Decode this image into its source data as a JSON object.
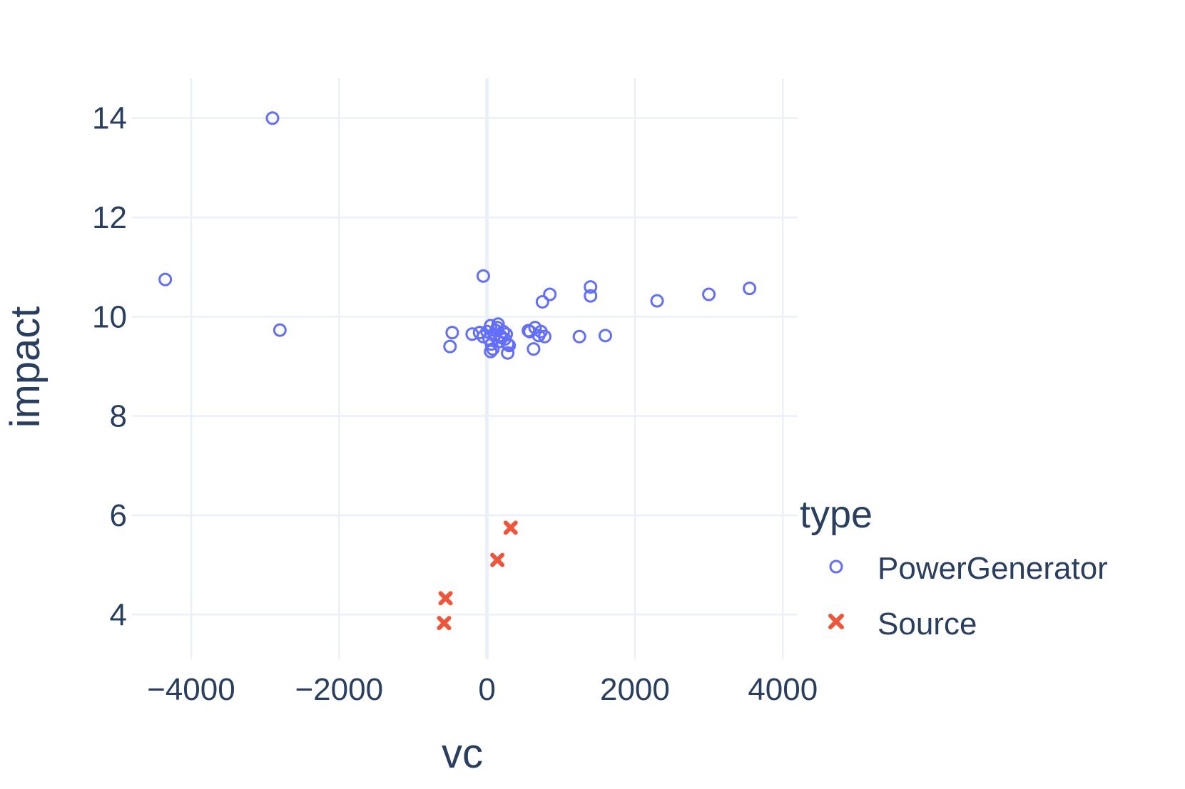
{
  "chart_data": {
    "type": "scatter",
    "xlabel": "vc",
    "ylabel": "impact",
    "xlim": [
      -4800,
      4200
    ],
    "ylim": [
      3.1,
      14.8
    ],
    "x_ticks": [
      -4000,
      -2000,
      0,
      2000,
      4000
    ],
    "x_tick_labels": [
      "−4000",
      "−2000",
      "0",
      "2000",
      "4000"
    ],
    "y_ticks": [
      4,
      6,
      8,
      10,
      12,
      14
    ],
    "y_tick_labels": [
      "4",
      "6",
      "8",
      "10",
      "12",
      "14"
    ],
    "grid": true,
    "legend": {
      "title": "type",
      "placement": "right"
    },
    "series": [
      {
        "name": "PowerGenerator",
        "marker": "circle-open",
        "color": "#636efa",
        "points": [
          [
            -2900,
            14.0
          ],
          [
            -4350,
            10.75
          ],
          [
            -2800,
            9.73
          ],
          [
            -50,
            10.82
          ],
          [
            1400,
            10.6
          ],
          [
            1400,
            10.42
          ],
          [
            850,
            10.45
          ],
          [
            750,
            10.3
          ],
          [
            2300,
            10.32
          ],
          [
            3000,
            10.45
          ],
          [
            3550,
            10.57
          ],
          [
            -470,
            9.68
          ],
          [
            -500,
            9.4
          ],
          [
            -200,
            9.65
          ],
          [
            -100,
            9.68
          ],
          [
            -50,
            9.6
          ],
          [
            0,
            9.7
          ],
          [
            30,
            9.55
          ],
          [
            50,
            9.82
          ],
          [
            60,
            9.45
          ],
          [
            80,
            9.35
          ],
          [
            50,
            9.3
          ],
          [
            100,
            9.62
          ],
          [
            120,
            9.72
          ],
          [
            140,
            9.78
          ],
          [
            150,
            9.85
          ],
          [
            160,
            9.5
          ],
          [
            180,
            9.62
          ],
          [
            200,
            9.58
          ],
          [
            220,
            9.7
          ],
          [
            240,
            9.55
          ],
          [
            260,
            9.65
          ],
          [
            280,
            9.45
          ],
          [
            300,
            9.42
          ],
          [
            280,
            9.27
          ],
          [
            560,
            9.72
          ],
          [
            580,
            9.7
          ],
          [
            650,
            9.78
          ],
          [
            700,
            9.62
          ],
          [
            730,
            9.7
          ],
          [
            780,
            9.6
          ],
          [
            630,
            9.35
          ],
          [
            1250,
            9.6
          ],
          [
            1600,
            9.62
          ]
        ]
      },
      {
        "name": "Source",
        "marker": "x",
        "color": "#ef553b",
        "points": [
          [
            320,
            5.75
          ],
          [
            140,
            5.1
          ],
          [
            -560,
            4.33
          ],
          [
            -580,
            3.83
          ]
        ]
      }
    ]
  }
}
